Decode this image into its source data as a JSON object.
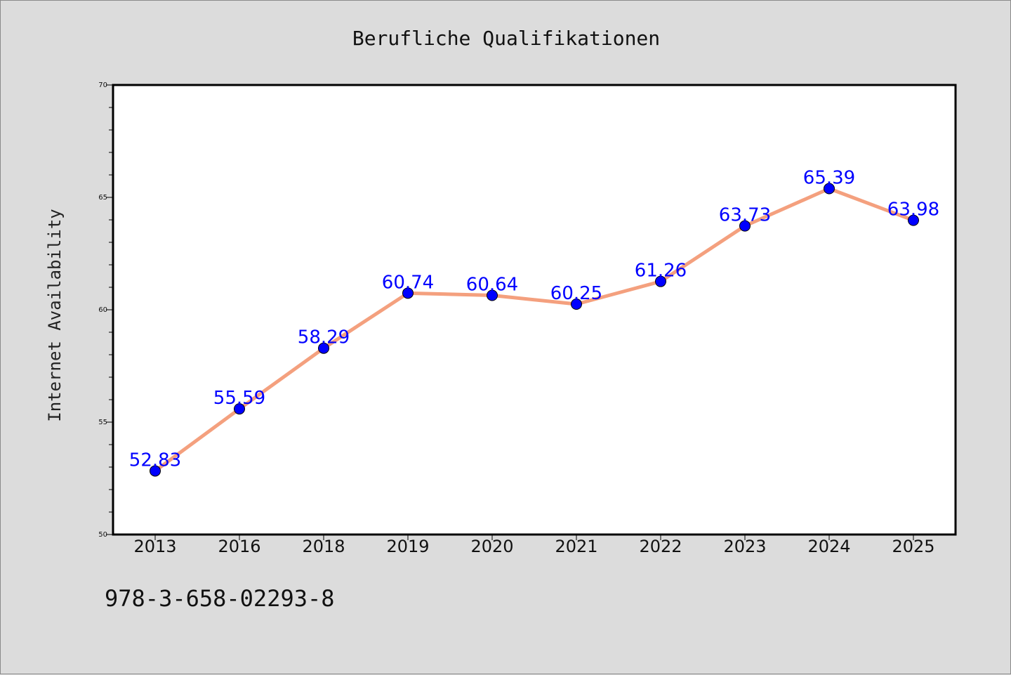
{
  "chart_data": {
    "type": "line",
    "title": "Berufliche Qualifikationen",
    "xlabel": "",
    "ylabel": "Internet Availability",
    "categories": [
      "2013",
      "2016",
      "2018",
      "2019",
      "2020",
      "2021",
      "2022",
      "2023",
      "2024",
      "2025"
    ],
    "series": [
      {
        "values": [
          52.83,
          55.59,
          58.29,
          60.74,
          60.64,
          60.25,
          61.26,
          63.73,
          65.39,
          63.98
        ],
        "line_color": "#f4a07e",
        "marker_color": "#0000ff"
      }
    ],
    "data_labels": [
      "52.83",
      "55.59",
      "58.29",
      "60.74",
      "60.64",
      "60.25",
      "61.26",
      "63.73",
      "65.39",
      "63.98"
    ],
    "ylim": [
      50,
      70
    ],
    "y_major_ticks": [
      "50",
      "55",
      "60",
      "65",
      "70"
    ],
    "grid": false
  },
  "footer": {
    "code": "978-3-658-02293-8"
  }
}
